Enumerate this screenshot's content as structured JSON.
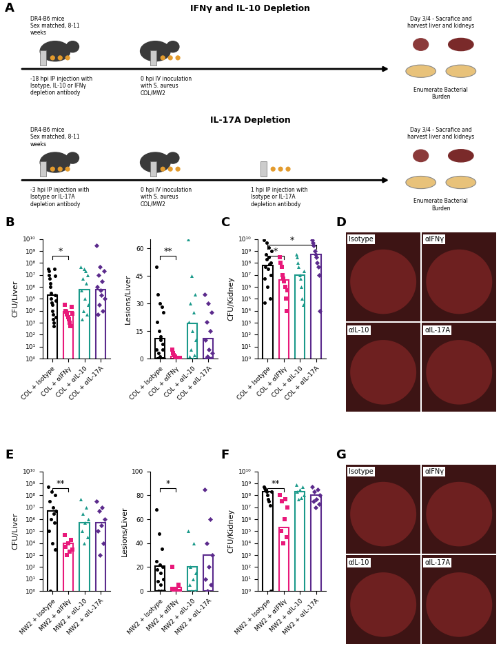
{
  "panels": {
    "A": {
      "label": "A",
      "rows": [
        {
          "title": "IFNγ and IL-10 Depletion",
          "mice": "DR4-B6 mice\nSex matched, 8-11\nweeks",
          "steps": [
            "-18 hpi IP injection with\nIsotype, IL-10 or IFNγ\ndepletion antibody",
            "0 hpi IV inoculation\nwith S. aureus\nCOL/MW2"
          ],
          "end": "Day 3/4 - Sacrafice and\nharvest liver and kidneys",
          "readout": "Enumerate Bacterial\nBurden"
        },
        {
          "title": "IL-17A Depletion",
          "mice": "DR4-B6 mice\nSex matched, 8-11\nweeks",
          "steps": [
            "-3 hpi IP injection with\nIsotype or IL-17A\ndepletion antibody",
            "0 hpi IV inoculation\nwith S. aureus\nCOL/MW2",
            "1 hpi IP injection with\nIsotype or IL-17A\ndepletion antibody"
          ],
          "end": "Day 3/4 - Sacrafice and\nharvest liver and kidneys",
          "readout": "Enumerate Bacterial\nBurden"
        }
      ]
    },
    "D": {
      "label": "D",
      "images": [
        "Isotype",
        "αIFNγ",
        "αIL-10",
        "αIL-17A"
      ]
    },
    "G": {
      "label": "G",
      "images": [
        "Isotype",
        "αIFNγ",
        "αIL-10",
        "αIL-17A"
      ]
    }
  },
  "chart_data": [
    {
      "panel": "B",
      "type": "bar",
      "y_label": "CFU/Liver",
      "categories": [
        "COL + Isotype",
        "COL + αIFNγ",
        "COL + αIL-10",
        "COL + αIL-17A"
      ],
      "colors": [
        "#000000",
        "#e8197a",
        "#1a998a",
        "#5b2a8c"
      ],
      "markers": [
        "circle",
        "square",
        "triangle",
        "diamond"
      ],
      "values": [
        200000,
        8000,
        600000,
        600000
      ],
      "points": [
        [
          30000000,
          20000000,
          10000000,
          5000000,
          2000000,
          1000000,
          300000,
          100000,
          50000,
          30000,
          10000,
          5000,
          2000,
          1000,
          500,
          30000000,
          8000000,
          200000,
          70000,
          3000
        ],
        [
          30000,
          10000,
          8000,
          5000,
          3000,
          2000,
          1000,
          500,
          20000,
          6000
        ],
        [
          50000000,
          30000000,
          10000000,
          5000000,
          2000000,
          500000,
          100000,
          30000,
          10000,
          5000,
          2000,
          20000000
        ],
        [
          3000000000,
          50000000,
          20000000,
          10000000,
          3000000,
          1000000,
          500000,
          100000,
          30000,
          10000,
          5000,
          200000
        ]
      ],
      "log": "y",
      "ylim": [
        1,
        10000000000
      ],
      "yticks": [
        {
          "value": 1,
          "label": "10⁰"
        },
        {
          "value": 10,
          "label": "10¹"
        },
        {
          "value": 100,
          "label": "10²"
        },
        {
          "value": 1000,
          "label": "10³"
        },
        {
          "value": 10000,
          "label": "10⁴"
        },
        {
          "value": 100000,
          "label": "10⁵"
        },
        {
          "value": 1000000,
          "label": "10⁶"
        },
        {
          "value": 10000000,
          "label": "10⁷"
        },
        {
          "value": 100000000,
          "label": "10⁸"
        },
        {
          "value": 1000000000,
          "label": "10⁹"
        },
        {
          "value": 10000000000,
          "label": "10¹⁰"
        }
      ],
      "significance": [
        {
          "from": 0,
          "to": 1,
          "label": "*"
        }
      ]
    },
    {
      "type": "bar",
      "y_label": "Lesions/Liver",
      "categories": [
        "COL + Isotype",
        "COL + αIFNγ",
        "COL + αIL-10",
        "COL + αIL-17A"
      ],
      "colors": [
        "#000000",
        "#e8197a",
        "#1a998a",
        "#5b2a8c"
      ],
      "markers": [
        "circle",
        "square",
        "triangle",
        "diamond"
      ],
      "values": [
        11,
        1,
        19,
        11
      ],
      "points": [
        [
          50,
          35,
          30,
          28,
          25,
          20,
          15,
          12,
          8,
          5,
          3,
          1,
          0,
          0,
          0,
          0,
          0,
          0,
          0,
          0,
          10,
          5
        ],
        [
          5,
          3,
          2,
          1,
          0,
          0,
          0,
          0,
          0,
          0
        ],
        [
          65,
          45,
          35,
          30,
          25,
          20,
          15,
          10,
          5,
          2,
          1,
          0
        ],
        [
          35,
          30,
          25,
          20,
          15,
          10,
          5,
          3,
          1,
          0,
          0,
          0
        ]
      ],
      "ylim": [
        0,
        65
      ],
      "yticks": [
        0,
        15,
        30,
        45,
        60
      ],
      "significance": [
        {
          "from": 0,
          "to": 1,
          "label": "**"
        }
      ]
    },
    {
      "panel": "C",
      "type": "bar",
      "y_label": "CFU/Kidney",
      "categories": [
        "COL + Isotype",
        "COL + αIFNγ",
        "COL + αIL-10",
        "COL + αIL-17A"
      ],
      "colors": [
        "#000000",
        "#e8197a",
        "#1a998a",
        "#5b2a8c"
      ],
      "markers": [
        "circle",
        "square",
        "triangle",
        "diamond"
      ],
      "values": [
        60000000,
        4000000,
        10000000,
        500000000
      ],
      "points": [
        [
          8000000000,
          5000000000,
          2000000000,
          1000000000,
          500000000,
          300000000,
          100000000,
          50000000,
          30000000,
          10000000,
          5000000,
          1000000,
          100000,
          50000,
          200000000,
          80000000
        ],
        [
          300000000,
          100000000,
          50000000,
          10000000,
          5000000,
          3000000,
          1000000,
          100000,
          10000,
          500000
        ],
        [
          500000000,
          300000000,
          100000000,
          50000000,
          10000000,
          5000000,
          1000000,
          100000,
          30000,
          20000000
        ],
        [
          8000000000,
          5000000000,
          3000000000,
          1000000000,
          500000000,
          300000000,
          100000000,
          50000000,
          10000000,
          10000
        ]
      ],
      "log": "y",
      "ylim": [
        1,
        10000000000
      ],
      "yticks": [
        {
          "value": 1,
          "label": "10⁰"
        },
        {
          "value": 10,
          "label": "10¹"
        },
        {
          "value": 100,
          "label": "10²"
        },
        {
          "value": 1000,
          "label": "10³"
        },
        {
          "value": 10000,
          "label": "10⁴"
        },
        {
          "value": 100000,
          "label": "10⁵"
        },
        {
          "value": 1000000,
          "label": "10⁶"
        },
        {
          "value": 10000000,
          "label": "10⁷"
        },
        {
          "value": 100000000,
          "label": "10⁸"
        },
        {
          "value": 1000000000,
          "label": "10⁹"
        },
        {
          "value": 10000000000,
          "label": "10¹⁰"
        }
      ],
      "significance": [
        {
          "from": 0,
          "to": 1,
          "label": "*"
        },
        {
          "from": 0,
          "to": 3,
          "label": "*"
        }
      ]
    },
    {
      "panel": "E",
      "type": "bar",
      "y_label": "CFU/Liver",
      "categories": [
        "MW2 + Isotype",
        "MW2 + αIFNγ",
        "MW2 + αIL-10",
        "MW2 + αIL-17A"
      ],
      "colors": [
        "#000000",
        "#e8197a",
        "#1a998a",
        "#5b2a8c"
      ],
      "markers": [
        "circle",
        "square",
        "triangle",
        "diamond"
      ],
      "values": [
        5000000,
        10000,
        500000,
        500000
      ],
      "points": [
        [
          500000000,
          200000000,
          100000000,
          30000000,
          10000000,
          5000000,
          1000000,
          500000,
          100000,
          10000,
          3000,
          1,
          3000000
        ],
        [
          50000,
          20000,
          10000,
          5000,
          3000,
          2000,
          1000
        ],
        [
          50000000,
          10000000,
          3000000,
          1000000,
          500000,
          100000,
          30000,
          10000
        ],
        [
          30000000,
          10000000,
          5000000,
          1000000,
          300000,
          100000,
          10000,
          1000
        ]
      ],
      "log": "y",
      "ylim": [
        1,
        10000000000
      ],
      "yticks": [
        {
          "value": 1,
          "label": "10⁰"
        },
        {
          "value": 10,
          "label": "10¹"
        },
        {
          "value": 100,
          "label": "10²"
        },
        {
          "value": 1000,
          "label": "10³"
        },
        {
          "value": 10000,
          "label": "10⁴"
        },
        {
          "value": 100000,
          "label": "10⁵"
        },
        {
          "value": 1000000,
          "label": "10⁶"
        },
        {
          "value": 10000000,
          "label": "10⁷"
        },
        {
          "value": 100000000,
          "label": "10⁸"
        },
        {
          "value": 1000000000,
          "label": "10⁹"
        },
        {
          "value": 10000000000,
          "label": "10¹⁰"
        }
      ],
      "significance": [
        {
          "from": 0,
          "to": 1,
          "label": "**"
        }
      ]
    },
    {
      "type": "bar",
      "y_label": "Lesions/Liver",
      "categories": [
        "MW2 + Isotype",
        "MW2 + αIFNγ",
        "MW2 + αIL-10",
        "MW2 + αIL-17A"
      ],
      "colors": [
        "#000000",
        "#e8197a",
        "#1a998a",
        "#5b2a8c"
      ],
      "markers": [
        "circle",
        "square",
        "triangle",
        "diamond"
      ],
      "values": [
        21,
        3,
        20,
        30
      ],
      "points": [
        [
          68,
          48,
          35,
          25,
          22,
          20,
          18,
          15,
          10,
          8,
          5,
          0,
          0,
          0
        ],
        [
          20,
          5,
          2,
          1,
          0,
          0,
          0
        ],
        [
          50,
          40,
          20,
          15,
          10,
          5,
          0,
          0
        ],
        [
          85,
          60,
          40,
          30,
          20,
          10,
          5,
          0
        ]
      ],
      "ylim": [
        0,
        100
      ],
      "yticks": [
        0,
        20,
        40,
        60,
        80,
        100
      ],
      "significance": [
        {
          "from": 0,
          "to": 1,
          "label": "*"
        }
      ]
    },
    {
      "panel": "F",
      "type": "bar",
      "y_label": "CFU/Kidney",
      "categories": [
        "MW2 + Isotype",
        "MW2 + αIFNγ",
        "MW2 + αIL-10",
        "MW2 + αIL-17A"
      ],
      "colors": [
        "#000000",
        "#e8197a",
        "#1a998a",
        "#5b2a8c"
      ],
      "markers": [
        "circle",
        "square",
        "triangle",
        "diamond"
      ],
      "values": [
        200000000,
        200000,
        200000000,
        100000000
      ],
      "points": [
        [
          500000000,
          400000000,
          300000000,
          200000000,
          100000000,
          50000000,
          30000000,
          15000000,
          1,
          200000000
        ],
        [
          100000000,
          50000000,
          30000000,
          10000000,
          1000000,
          100000,
          30000,
          10000
        ],
        [
          800000000,
          500000000,
          300000000,
          200000000,
          100000000,
          60000000,
          50000000
        ],
        [
          500000000,
          300000000,
          200000000,
          100000000,
          50000000,
          30000000,
          20000000,
          10000000
        ]
      ],
      "log": "y",
      "ylim": [
        1,
        10000000000
      ],
      "yticks": [
        {
          "value": 1,
          "label": "10⁰"
        },
        {
          "value": 10,
          "label": "10¹"
        },
        {
          "value": 100,
          "label": "10²"
        },
        {
          "value": 1000,
          "label": "10³"
        },
        {
          "value": 10000,
          "label": "10⁴"
        },
        {
          "value": 100000,
          "label": "10⁵"
        },
        {
          "value": 1000000,
          "label": "10⁶"
        },
        {
          "value": 10000000,
          "label": "10⁷"
        },
        {
          "value": 100000000,
          "label": "10⁸"
        },
        {
          "value": 1000000000,
          "label": "10⁹"
        },
        {
          "value": 10000000000,
          "label": "10¹⁰"
        }
      ],
      "significance": [
        {
          "from": 0,
          "to": 1,
          "label": "**"
        }
      ]
    }
  ]
}
